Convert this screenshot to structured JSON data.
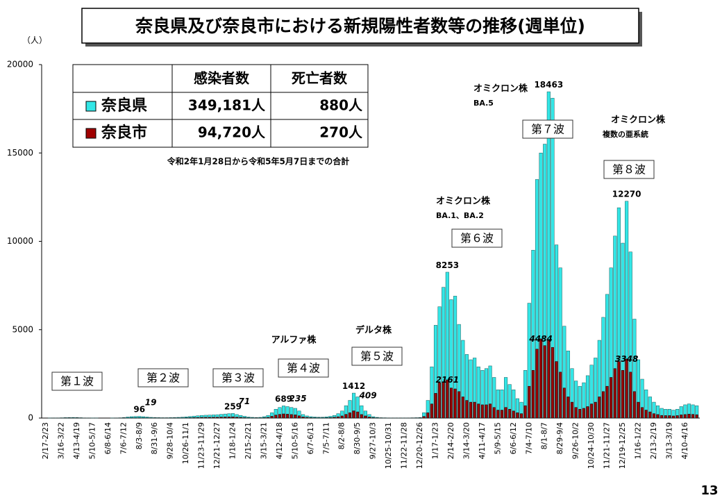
{
  "chart_data": {
    "type": "bar",
    "title": "奈良県及び奈良市における新規陽性者数等の推移(週単位)",
    "y_unit": "（人）",
    "page_number": "13",
    "ylim": [
      0,
      20000
    ],
    "yticks": [
      0,
      5000,
      10000,
      15000,
      20000
    ],
    "grid": false,
    "categories": [
      "2/17-2/23",
      null,
      null,
      null,
      "3/16-3/22",
      null,
      null,
      null,
      "4/13-4/19",
      null,
      null,
      null,
      "5/10-5/17",
      null,
      null,
      null,
      "6/8-6/14",
      null,
      null,
      null,
      "7/6-7/12",
      null,
      null,
      null,
      "8/3-8/9",
      null,
      null,
      null,
      "8/31-9/6",
      null,
      null,
      null,
      "9/28-10/4",
      null,
      null,
      null,
      "10/26-11/1",
      null,
      null,
      null,
      "11/23-11/29",
      null,
      null,
      null,
      "12/21-12/27",
      null,
      null,
      null,
      "1/18-1/24",
      null,
      null,
      null,
      "2/15-2/21",
      null,
      null,
      null,
      "3/15-3/21",
      null,
      null,
      null,
      "4/12-4/18",
      null,
      null,
      null,
      "5/10-5/16",
      null,
      null,
      null,
      "6/7-6/13",
      null,
      null,
      null,
      "7/5-7/11",
      null,
      null,
      null,
      "8/2-8/8",
      null,
      null,
      null,
      "8/30-9/5",
      null,
      null,
      null,
      "9/27-10/3",
      null,
      null,
      null,
      "10/25-10/31",
      null,
      null,
      null,
      "11/22-11/28",
      null,
      null,
      null,
      "12/20-12/26",
      null,
      null,
      null,
      "1/17-1/23",
      null,
      null,
      null,
      "2/14-2/20",
      null,
      null,
      null,
      "3/14-3/20",
      null,
      null,
      null,
      "4/11-4/17",
      null,
      null,
      null,
      "5/9-5/15",
      null,
      null,
      null,
      "6/6-6/12",
      null,
      null,
      null,
      "7/4-7/10",
      null,
      null,
      null,
      "8/1-8/7",
      null,
      null,
      null,
      "8/29-9/4",
      null,
      null,
      null,
      "9/26-10/2",
      null,
      null,
      null,
      "10/24-10/30",
      null,
      null,
      null,
      "11/21-11/27",
      null,
      null,
      null,
      "12/19-12/25",
      null,
      null,
      null,
      "1/16-1/22",
      null,
      null,
      null,
      "2/13-2/19",
      null,
      null,
      null,
      "3/13-3/19",
      null,
      null,
      null,
      "4/10-4/16",
      null,
      null,
      null
    ],
    "series": [
      {
        "name": "奈良県",
        "color": "#33e6e6",
        "values": [
          0,
          2,
          5,
          8,
          15,
          25,
          30,
          35,
          30,
          20,
          10,
          5,
          2,
          1,
          0,
          0,
          0,
          2,
          5,
          15,
          30,
          60,
          80,
          90,
          96,
          80,
          60,
          40,
          30,
          25,
          20,
          20,
          25,
          30,
          40,
          50,
          70,
          90,
          110,
          130,
          150,
          160,
          170,
          180,
          190,
          210,
          230,
          250,
          259,
          200,
          150,
          100,
          60,
          40,
          30,
          40,
          80,
          150,
          300,
          500,
          600,
          689,
          650,
          600,
          550,
          400,
          200,
          120,
          80,
          60,
          50,
          50,
          70,
          100,
          150,
          250,
          400,
          700,
          1000,
          1412,
          1200,
          700,
          400,
          200,
          80,
          40,
          20,
          15,
          10,
          10,
          10,
          10,
          10,
          10,
          15,
          20,
          30,
          300,
          1000,
          2900,
          5250,
          6300,
          7400,
          8253,
          6700,
          6900,
          5300,
          4400,
          3600,
          3300,
          3400,
          2900,
          2700,
          2800,
          2950,
          2300,
          1600,
          1600,
          2300,
          1900,
          1600,
          1100,
          900,
          2700,
          6500,
          9500,
          13500,
          15000,
          15500,
          18463,
          18100,
          9800,
          8500,
          5200,
          3800,
          2800,
          2100,
          1800,
          2000,
          2400,
          3000,
          3400,
          4400,
          5700,
          7000,
          8500,
          10300,
          11900,
          9900,
          12270,
          9400,
          5600,
          3300,
          2200,
          1600,
          1200,
          900,
          700,
          550,
          500,
          500,
          450,
          500,
          650,
          750,
          800,
          750,
          700
        ],
        "value_labels": [
          null,
          null,
          null,
          null,
          null,
          null,
          null,
          null,
          null,
          null,
          null,
          null,
          null,
          null,
          null,
          null,
          null,
          null,
          null,
          null,
          null,
          null,
          null,
          null,
          "96",
          null,
          null,
          null,
          null,
          null,
          null,
          null,
          null,
          null,
          null,
          null,
          null,
          null,
          null,
          null,
          null,
          null,
          null,
          null,
          null,
          null,
          null,
          null,
          "259",
          null,
          null,
          null,
          null,
          null,
          null,
          null,
          null,
          null,
          null,
          null,
          null,
          "689",
          null,
          null,
          null,
          null,
          null,
          null,
          null,
          null,
          null,
          null,
          null,
          null,
          null,
          null,
          null,
          null,
          null,
          "1412",
          null,
          null,
          null,
          null,
          null,
          null,
          null,
          null,
          null,
          null,
          null,
          null,
          null,
          null,
          null,
          null,
          null,
          null,
          null,
          null,
          null,
          null,
          null,
          "8253",
          null,
          null,
          null,
          null,
          null,
          null,
          null,
          null,
          null,
          null,
          null,
          null,
          null,
          null,
          null,
          null,
          null,
          null,
          null,
          null,
          null,
          null,
          null,
          null,
          null,
          "18463",
          null,
          null,
          null,
          null,
          null,
          null,
          null,
          null,
          null,
          null,
          null,
          null,
          null,
          null,
          null,
          null,
          null,
          null,
          null,
          "12270",
          null,
          null,
          null,
          null,
          null,
          null,
          null,
          null,
          null,
          null,
          null,
          null,
          null,
          null,
          null,
          null,
          null,
          null
        ]
      },
      {
        "name": "奈良市",
        "color": "#a00000",
        "values": [
          0,
          0,
          1,
          2,
          4,
          7,
          8,
          10,
          8,
          5,
          3,
          1,
          0,
          0,
          0,
          0,
          0,
          0,
          1,
          4,
          8,
          12,
          15,
          17,
          19,
          16,
          12,
          8,
          6,
          5,
          4,
          4,
          5,
          6,
          10,
          12,
          18,
          24,
          30,
          35,
          40,
          44,
          46,
          48,
          52,
          57,
          62,
          68,
          71,
          54,
          40,
          27,
          16,
          11,
          8,
          11,
          22,
          40,
          100,
          170,
          210,
          235,
          220,
          200,
          180,
          130,
          65,
          40,
          25,
          18,
          15,
          15,
          20,
          30,
          45,
          75,
          120,
          210,
          300,
          409,
          350,
          200,
          120,
          60,
          25,
          12,
          6,
          4,
          3,
          3,
          3,
          3,
          3,
          3,
          4,
          6,
          9,
          90,
          300,
          800,
          1400,
          2000,
          2050,
          2161,
          1700,
          1650,
          1500,
          1200,
          1000,
          900,
          900,
          800,
          750,
          750,
          800,
          600,
          450,
          450,
          600,
          500,
          400,
          300,
          250,
          700,
          1800,
          2700,
          3900,
          4484,
          4100,
          4400,
          4000,
          3200,
          2600,
          1700,
          1200,
          900,
          600,
          500,
          550,
          650,
          800,
          900,
          1200,
          1500,
          1800,
          2300,
          2800,
          3200,
          2700,
          3348,
          2600,
          1500,
          900,
          600,
          450,
          350,
          250,
          200,
          150,
          140,
          140,
          120,
          140,
          180,
          200,
          220,
          210,
          190
        ],
        "value_labels": [
          null,
          null,
          null,
          null,
          null,
          null,
          null,
          null,
          null,
          null,
          null,
          null,
          null,
          null,
          null,
          null,
          null,
          null,
          null,
          null,
          null,
          null,
          null,
          null,
          "19",
          null,
          null,
          null,
          null,
          null,
          null,
          null,
          null,
          null,
          null,
          null,
          null,
          null,
          null,
          null,
          null,
          null,
          null,
          null,
          null,
          null,
          null,
          null,
          "71",
          null,
          null,
          null,
          null,
          null,
          null,
          null,
          null,
          null,
          null,
          null,
          null,
          "235",
          null,
          null,
          null,
          null,
          null,
          null,
          null,
          null,
          null,
          null,
          null,
          null,
          null,
          null,
          null,
          null,
          null,
          "409",
          null,
          null,
          null,
          null,
          null,
          null,
          null,
          null,
          null,
          null,
          null,
          null,
          null,
          null,
          null,
          null,
          null,
          null,
          null,
          null,
          null,
          null,
          null,
          "2161",
          null,
          null,
          null,
          null,
          null,
          null,
          null,
          null,
          null,
          null,
          null,
          null,
          null,
          null,
          null,
          null,
          null,
          null,
          null,
          null,
          null,
          null,
          null,
          "4484",
          null,
          null,
          null,
          null,
          null,
          null,
          null,
          null,
          null,
          null,
          null,
          null,
          null,
          null,
          null,
          null,
          null,
          null,
          null,
          null,
          null,
          "3348",
          null,
          null,
          null,
          null,
          null,
          null,
          null,
          null,
          null,
          null,
          null,
          null,
          null,
          null,
          null,
          null,
          null,
          null
        ]
      }
    ],
    "summary_table": {
      "header": [
        "感染者数",
        "死亡者数"
      ],
      "rows": [
        [
          "349,181人",
          "880人"
        ],
        [
          "94,720人",
          "270人"
        ]
      ],
      "note": "令和2年1月28日から令和5年5月7日までの合計"
    },
    "waves": [
      "第１波",
      "第２波",
      "第３波",
      "第４波",
      "第５波",
      "第６波",
      "第７波",
      "第８波"
    ],
    "variants": [
      [
        "アルファ株"
      ],
      [
        "デルタ株"
      ],
      [
        "オミクロン株",
        "BA.1、BA.2"
      ],
      [
        "オミクロン株",
        "BA.5"
      ],
      [
        "オミクロン株",
        "複数の亜系統"
      ]
    ]
  }
}
